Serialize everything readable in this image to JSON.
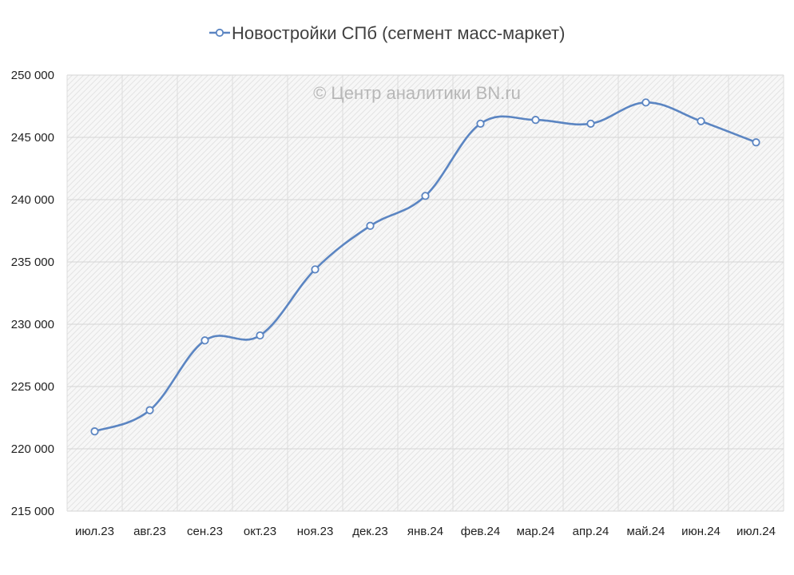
{
  "chart_data": {
    "type": "line",
    "legend_position": "top",
    "grid": true,
    "x": [
      "июл.23",
      "авг.23",
      "сен.23",
      "окт.23",
      "ноя.23",
      "дек.23",
      "янв.24",
      "фев.24",
      "мар.24",
      "апр.24",
      "май.24",
      "июн.24",
      "июл.24"
    ],
    "series": [
      {
        "name": "Новостройки СПб (сегмент масс-маркет)",
        "color": "#5b85c2",
        "values": [
          221400,
          223100,
          228700,
          229100,
          234400,
          237900,
          240300,
          246100,
          246400,
          246100,
          247800,
          246300,
          244600
        ]
      }
    ],
    "ylim": [
      215000,
      250000
    ],
    "yticks": [
      215000,
      220000,
      225000,
      230000,
      235000,
      240000,
      245000,
      250000
    ],
    "ytick_labels": [
      "215 000",
      "220 000",
      "225 000",
      "230 000",
      "235 000",
      "240 000",
      "245 000",
      "250 000"
    ],
    "annotation": "© Центр аналитики BN.ru",
    "background_pattern": "light hatched grey"
  }
}
